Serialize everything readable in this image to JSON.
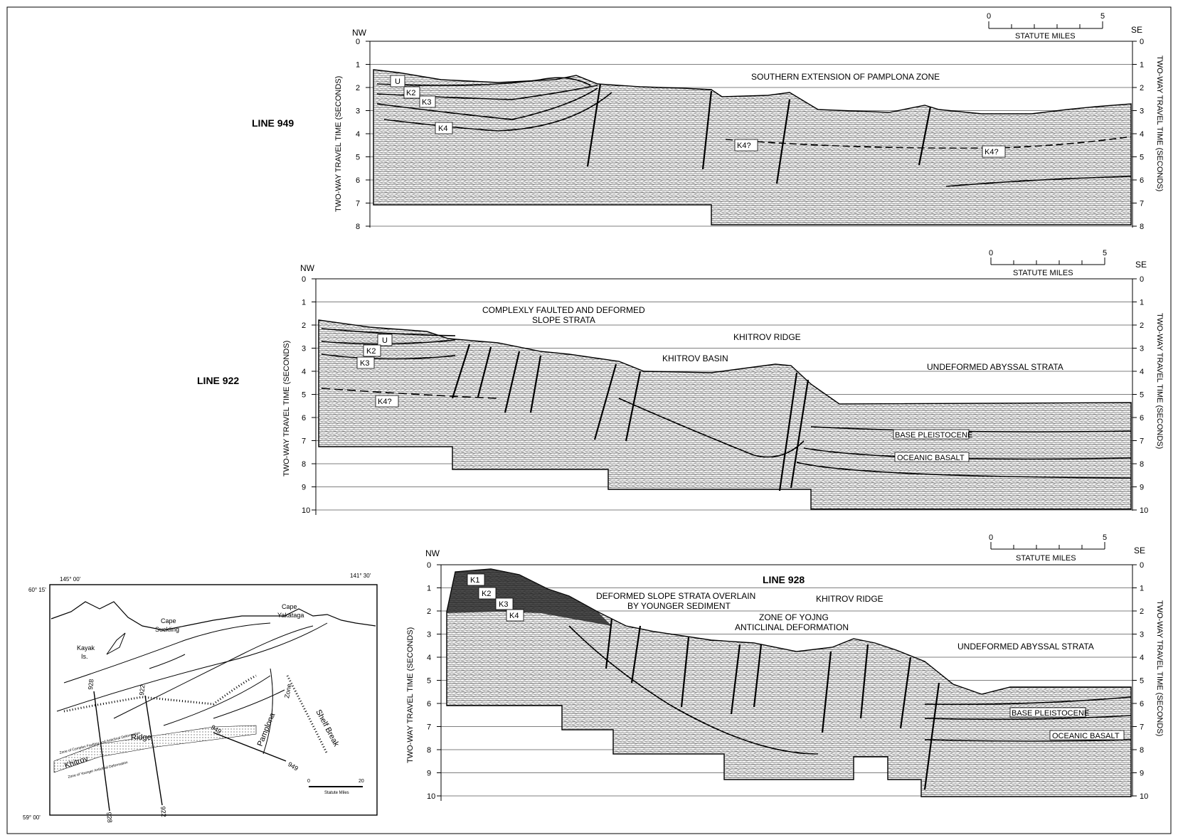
{
  "sections": [
    {
      "line_label": "LINE 949",
      "nw": "NW",
      "se": "SE",
      "axis_left": "TWO-WAY TRAVEL TIME (SECONDS)",
      "axis_right": "TWO-WAY TRAVEL TIME (SECONDS)",
      "ticks": [
        "0",
        "1",
        "2",
        "3",
        "4",
        "5",
        "6",
        "7",
        "8"
      ],
      "scale": {
        "zero": "0",
        "five": "5",
        "label": "STATUTE MILES"
      },
      "annotations": [
        "SOUTHERN EXTENSION OF PAMPLONA ZONE"
      ],
      "horizons": [
        "U",
        "K2",
        "K3",
        "K4",
        "K4?",
        "K4?"
      ]
    },
    {
      "line_label": "LINE 922",
      "nw": "NW",
      "se": "SE",
      "axis_left": "TWO-WAY TRAVEL TIME (SECONDS)",
      "axis_right": "TWO-WAY TRAVEL TIME (SECONDS)",
      "ticks": [
        "0",
        "1",
        "2",
        "3",
        "4",
        "5",
        "6",
        "7",
        "8",
        "9",
        "10"
      ],
      "scale": {
        "zero": "0",
        "five": "5",
        "label": "STATUTE MILES"
      },
      "annotations": [
        "COMPLEXLY FAULTED AND DEFORMED",
        "SLOPE STRATA",
        "KHITROV RIDGE",
        "KHITROV BASIN",
        "UNDEFORMED ABYSSAL STRATA",
        "BASE PLEISTOCENE",
        "OCEANIC BASALT"
      ],
      "horizons": [
        "U",
        "K2",
        "K3",
        "K4?"
      ]
    },
    {
      "line_label": "LINE 928",
      "nw": "NW",
      "se": "SE",
      "axis_left": "TWO-WAY TRAVEL TIME (SECONDS)",
      "axis_right": "TWO-WAY TRAVEL TIME (SECONDS)",
      "ticks": [
        "0",
        "1",
        "2",
        "3",
        "4",
        "5",
        "6",
        "7",
        "8",
        "9",
        "10"
      ],
      "scale": {
        "zero": "0",
        "five": "5",
        "label": "STATUTE MILES"
      },
      "annotations": [
        "DEFORMED SLOPE STRATA OVERLAIN",
        "BY YOUNGER SEDIMENT",
        "KHITROV RIDGE",
        "ZONE OF YOJNG",
        "ANTICLINAL DEFORMATION",
        "UNDEFORMED ABYSSAL STRATA",
        "BASE PLEISTOCENE",
        "OCEANIC BASALT"
      ],
      "horizons": [
        "K1",
        "K2",
        "K3",
        "K4"
      ]
    }
  ],
  "map": {
    "lon_left": "145° 00'",
    "lon_right": "141° 30'",
    "lat_top": "60° 15'",
    "lat_bottom": "59° 00'",
    "places": [
      "Cape",
      "Suckling",
      "Cape",
      "Yakataga",
      "Kayak",
      "Is."
    ],
    "features": [
      "Pamplona",
      "Zone",
      "Shelf Break",
      "Ridge",
      "Khitrov",
      "Zone of Complex Faulting and Anticlinal Deformation",
      "Zone of Younger Anticlinal Deformation"
    ],
    "lines": [
      "928",
      "922",
      "949",
      "928",
      "922",
      "949"
    ],
    "scale": {
      "zero": "0",
      "twenty": "20",
      "label": "Statute Miles"
    }
  },
  "colors": {
    "ink": "#000000",
    "paper": "#ffffff",
    "seismic": "#8a8a8a"
  }
}
